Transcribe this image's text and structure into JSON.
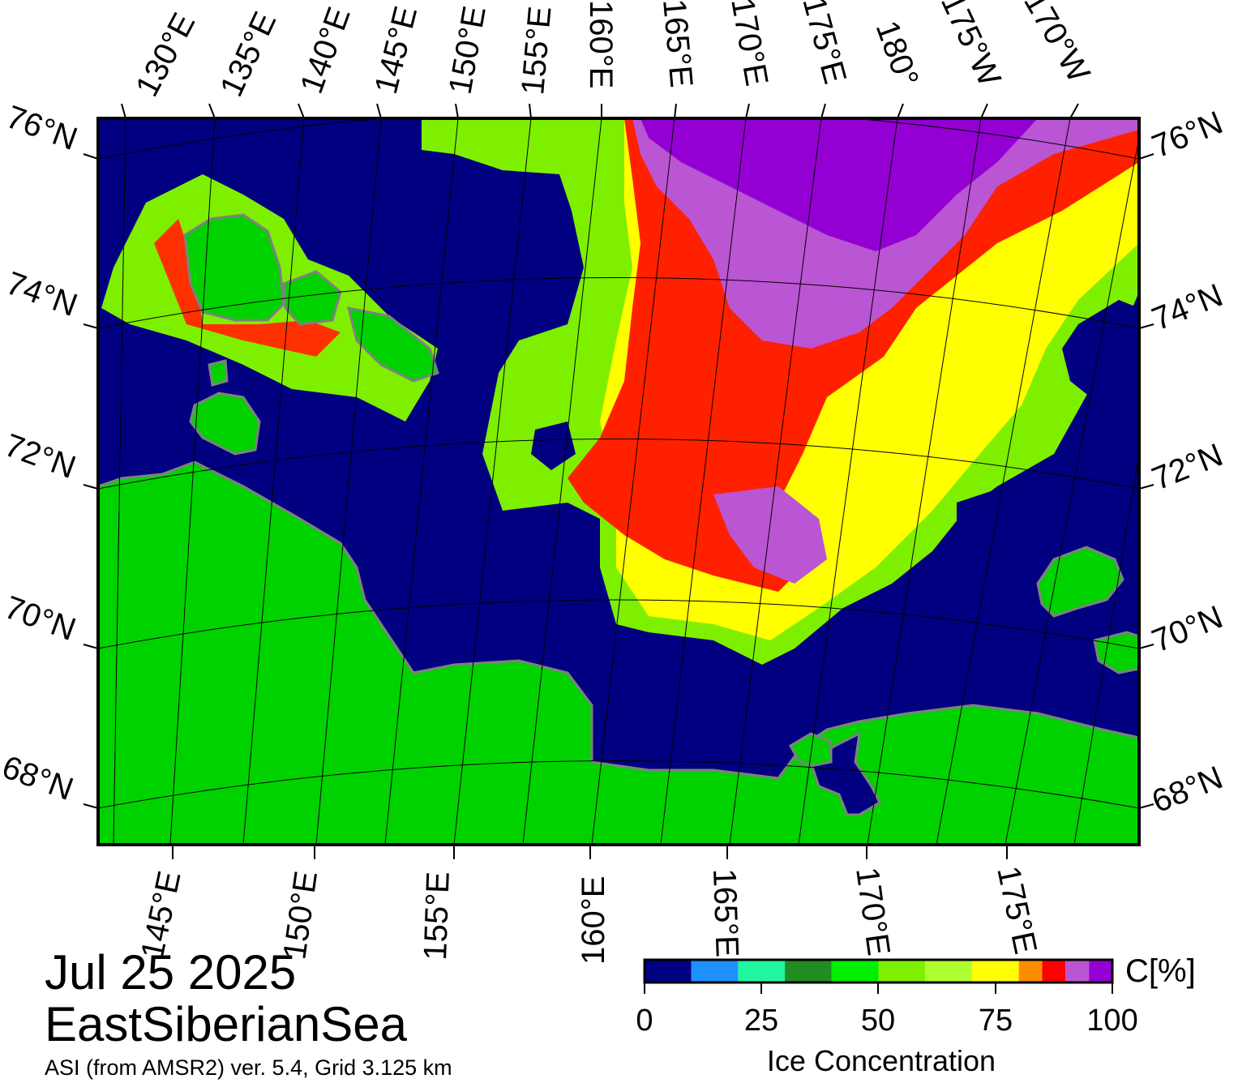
{
  "map": {
    "title_date": "Jul 25 2025",
    "title_region": "EastSiberianSea",
    "source_note": "ASI (from AMSR2) ver. 5.4,  Grid 3.125 km",
    "top_lon_labels": [
      "130°E",
      "135°E",
      "140°E",
      "145°E",
      "150°E",
      "155°E",
      "160°E",
      "165°E",
      "170°E",
      "175°E",
      "180°",
      "175°W",
      "170°W"
    ],
    "bottom_lon_labels": [
      "145°E",
      "150°E",
      "155°E",
      "160°E",
      "165°E",
      "170°E",
      "175°E"
    ],
    "left_lat_labels": [
      "76°N",
      "74°N",
      "72°N",
      "70°N",
      "68°N"
    ],
    "right_lat_labels": [
      "76°N",
      "74°N",
      "72°N",
      "70°N",
      "68°N"
    ],
    "colors": {
      "ocean": "#000080",
      "land": "#00d200",
      "coast": "#808080",
      "frame": "#000000"
    }
  },
  "colorbar": {
    "title": "Ice Concentration",
    "unit": "C[%]",
    "ticks": [
      "0",
      "25",
      "50",
      "75",
      "100"
    ],
    "range": [
      0,
      100
    ],
    "bins": [
      {
        "from": 0,
        "to": 10,
        "color": "#000080"
      },
      {
        "from": 10,
        "to": 20,
        "color": "#1e90ff"
      },
      {
        "from": 20,
        "to": 30,
        "color": "#20f5a0"
      },
      {
        "from": 30,
        "to": 40,
        "color": "#228b22"
      },
      {
        "from": 40,
        "to": 50,
        "color": "#00ee00"
      },
      {
        "from": 50,
        "to": 60,
        "color": "#7fef00"
      },
      {
        "from": 60,
        "to": 70,
        "color": "#adff2f"
      },
      {
        "from": 70,
        "to": 80,
        "color": "#ffff00"
      },
      {
        "from": 80,
        "to": 85,
        "color": "#ff8c00"
      },
      {
        "from": 85,
        "to": 90,
        "color": "#ff0000"
      },
      {
        "from": 90,
        "to": 95,
        "color": "#ba55d3"
      },
      {
        "from": 95,
        "to": 100,
        "color": "#9400d3"
      }
    ]
  }
}
